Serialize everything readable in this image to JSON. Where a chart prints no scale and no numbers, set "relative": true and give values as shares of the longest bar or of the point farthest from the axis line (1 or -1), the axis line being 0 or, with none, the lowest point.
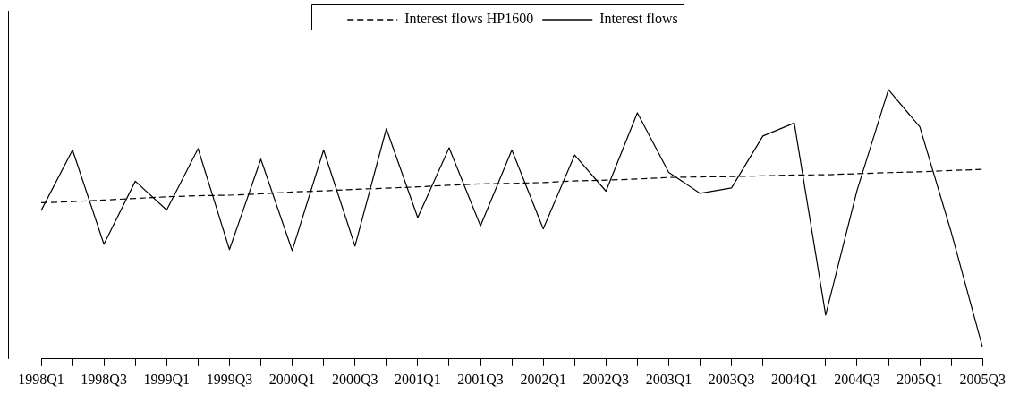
{
  "chart_data": {
    "type": "line",
    "relative": true,
    "legend": "top",
    "marker": "none",
    "grid": false,
    "categories": [
      "1998Q1",
      null,
      "1998Q3",
      null,
      "1999Q1",
      null,
      "1999Q3",
      null,
      "2000Q1",
      null,
      "2000Q3",
      null,
      "2001Q1",
      null,
      "2001Q3",
      null,
      "2002Q1",
      null,
      "2002Q3",
      null,
      "2003Q1",
      null,
      "2003Q3",
      null,
      "2004Q1",
      null,
      "2004Q3",
      null,
      "2005Q1",
      null,
      "2005Q3"
    ],
    "series": [
      {
        "name": "Interest flows HP1600",
        "color": "#000000",
        "line_style": "dashed",
        "values": [
          0.58,
          0.584,
          0.59,
          0.596,
          0.602,
          0.606,
          0.608,
          0.613,
          0.62,
          0.624,
          0.63,
          0.634,
          0.639,
          0.645,
          0.65,
          0.652,
          0.655,
          0.661,
          0.664,
          0.668,
          0.674,
          0.676,
          0.677,
          0.68,
          0.683,
          0.684,
          0.688,
          0.692,
          0.695,
          0.7,
          0.704
        ]
      },
      {
        "name": "Interest flows",
        "color": "#000000",
        "line_style": "solid",
        "values": [
          0.551,
          0.776,
          0.426,
          0.66,
          0.553,
          0.781,
          0.406,
          0.742,
          0.402,
          0.776,
          0.419,
          0.855,
          0.525,
          0.784,
          0.494,
          0.776,
          0.483,
          0.757,
          0.623,
          0.914,
          0.693,
          0.615,
          0.635,
          0.828,
          0.876,
          0.163,
          0.626,
          1.0,
          0.862,
          0.471,
          0.043
        ]
      }
    ]
  }
}
